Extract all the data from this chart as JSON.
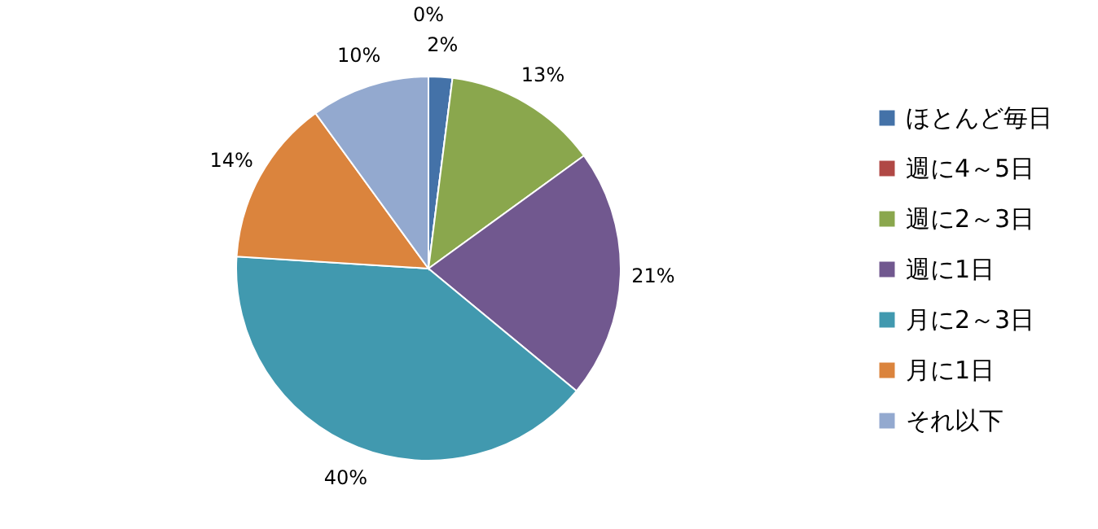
{
  "chart_data": {
    "type": "pie",
    "categories": [
      "ほとんど毎日",
      "週に4～5日",
      "週に2～3日",
      "週に1日",
      "月に2～3日",
      "月に1日",
      "それ以下"
    ],
    "values": [
      2,
      0,
      13,
      21,
      40,
      14,
      10
    ],
    "value_labels": [
      "2%",
      "0%",
      "13%",
      "21%",
      "40%",
      "14%",
      "10%"
    ],
    "colors": [
      "#4472a8",
      "#b04845",
      "#8aa74d",
      "#71588f",
      "#4199af",
      "#db843d",
      "#93a9cf"
    ],
    "legend": "right"
  }
}
